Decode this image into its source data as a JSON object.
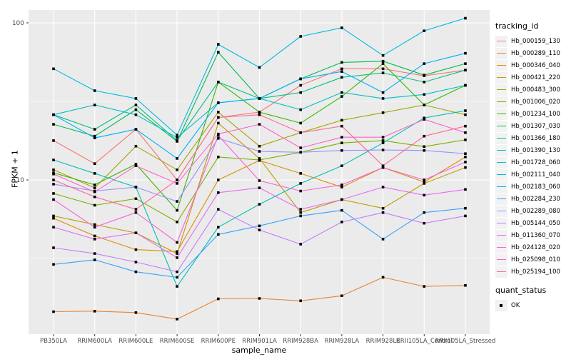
{
  "chart_data": {
    "type": "line",
    "title": "",
    "xlabel": "sample_name",
    "ylabel": "FPKM + 1",
    "yscale": "log10",
    "ylim": [
      1.04,
      128
    ],
    "yticks": [
      10,
      100
    ],
    "ytick_labels": [
      "10",
      "100"
    ],
    "minor_gridlines_at": [
      3.162,
      31.62
    ],
    "grid": "white-on-gray",
    "panel_bg": "#EBEBEB",
    "key_bg": "#F2F2F2",
    "axis_text_color": "#4D4D4D",
    "legend_position": "right",
    "marker": "black-square",
    "categories": [
      "PB350LA",
      "RRIM600LA",
      "RRIM600LE",
      "RRIM600SE",
      "RRIM600PE",
      "RRIM901LA",
      "RRIM928BA",
      "RRIM928LA",
      "RRIM928LE",
      "RRII105LA_Control",
      "RRII105LA_Stressed"
    ],
    "series": [
      {
        "name": "Hb_000159_130",
        "color": "#F8766D",
        "values": [
          17.8,
          12.7,
          21,
          10,
          25,
          27,
          40,
          51,
          51,
          46,
          50
        ]
      },
      {
        "name": "Hb_000289_110",
        "color": "#EA8331",
        "values": [
          1.45,
          1.46,
          1.43,
          1.3,
          1.75,
          1.76,
          1.7,
          1.83,
          2.4,
          2.1,
          2.13
        ]
      },
      {
        "name": "Hb_000346_040",
        "color": "#D89000",
        "values": [
          5.7,
          4.4,
          3.6,
          3.5,
          10,
          13.3,
          11,
          9,
          12,
          9.7,
          14
        ]
      },
      {
        "name": "Hb_000421_220",
        "color": "#C09B00",
        "values": [
          5.9,
          5.2,
          4.6,
          3.4,
          23,
          13.7,
          6.2,
          7.5,
          6.6,
          9.5,
          12
        ]
      },
      {
        "name": "Hb_000483_300",
        "color": "#A3A500",
        "values": [
          11.6,
          8.9,
          16.4,
          11.6,
          27,
          16.4,
          20,
          24,
          26.8,
          30,
          26
        ]
      },
      {
        "name": "Hb_001006_020",
        "color": "#7CAE00",
        "values": [
          8.2,
          6.9,
          7.6,
          5.4,
          14,
          13.4,
          15,
          17.2,
          17.8,
          16.3,
          18
        ]
      },
      {
        "name": "Hb_001234_100",
        "color": "#39B600",
        "values": [
          11.1,
          9.3,
          12.6,
          6.4,
          42,
          27,
          23,
          34,
          55,
          30,
          40
        ]
      },
      {
        "name": "Hb_001307_030",
        "color": "#00BB4E",
        "values": [
          22.6,
          19,
          28,
          17.6,
          65,
          33,
          44,
          56,
          57,
          46.5,
          55
        ]
      },
      {
        "name": "Hb_001366_180",
        "color": "#00C087",
        "values": [
          26,
          21,
          30,
          17.8,
          42,
          33,
          36,
          45,
          48,
          42,
          50
        ]
      },
      {
        "name": "Hb_001390_130",
        "color": "#00C0B2",
        "values": [
          13.4,
          11,
          9,
          2.1,
          5,
          7,
          9.5,
          12.3,
          17.2,
          24.8,
          27.6
        ]
      },
      {
        "name": "Hb_001728_060",
        "color": "#00BFC4",
        "values": [
          26,
          30,
          26,
          18.6,
          31,
          33,
          28,
          36,
          33,
          35,
          40
        ]
      },
      {
        "name": "Hb_002111_040",
        "color": "#00BAE0",
        "values": [
          51,
          37,
          33,
          19.3,
          73,
          52,
          82,
          93,
          62,
          89,
          107
        ]
      },
      {
        "name": "Hb_002183_060",
        "color": "#00B0F6",
        "values": [
          26,
          18.5,
          21,
          13.7,
          31,
          33,
          44,
          49,
          36,
          55,
          64
        ]
      },
      {
        "name": "Hb_002284_230",
        "color": "#35A2FF",
        "values": [
          2.9,
          3.1,
          2.6,
          2.4,
          4.5,
          5.1,
          5.9,
          6.4,
          4.2,
          6.2,
          6.6
        ]
      },
      {
        "name": "Hb_002289_080",
        "color": "#9590FF",
        "values": [
          9.4,
          8.5,
          9,
          7.3,
          18.4,
          15.2,
          15,
          15.4,
          15.5,
          15.4,
          14.7
        ]
      },
      {
        "name": "Hb_005144_050",
        "color": "#C77CFF",
        "values": [
          3.7,
          3.4,
          3,
          2.6,
          6.5,
          4.8,
          3.9,
          5.4,
          6.2,
          5.3,
          5.9
        ]
      },
      {
        "name": "Hb_011360_070",
        "color": "#E76BF3",
        "values": [
          5,
          4.2,
          4.6,
          3.2,
          8.3,
          8.9,
          6.5,
          7.5,
          9,
          8,
          8.7
        ]
      },
      {
        "name": "Hb_024128_020",
        "color": "#FA62DB",
        "values": [
          7.5,
          5,
          6.2,
          4,
          19.2,
          9.9,
          8.5,
          9.3,
          12,
          10,
          13
        ]
      },
      {
        "name": "Hb_025098_010",
        "color": "#FF61CC",
        "values": [
          10.9,
          8.4,
          12.3,
          9.5,
          19.6,
          22.6,
          16,
          18.7,
          18.7,
          24.3,
          20
        ]
      },
      {
        "name": "Hb_025194_100",
        "color": "#FF6A98",
        "values": [
          10,
          7.8,
          6.5,
          10,
          25,
          26,
          20,
          22,
          12.3,
          19,
          22
        ]
      }
    ]
  },
  "legend": {
    "tracking_title": "tracking_id",
    "quant_title": "quant_status",
    "quant_items": [
      {
        "label": "OK"
      }
    ]
  }
}
